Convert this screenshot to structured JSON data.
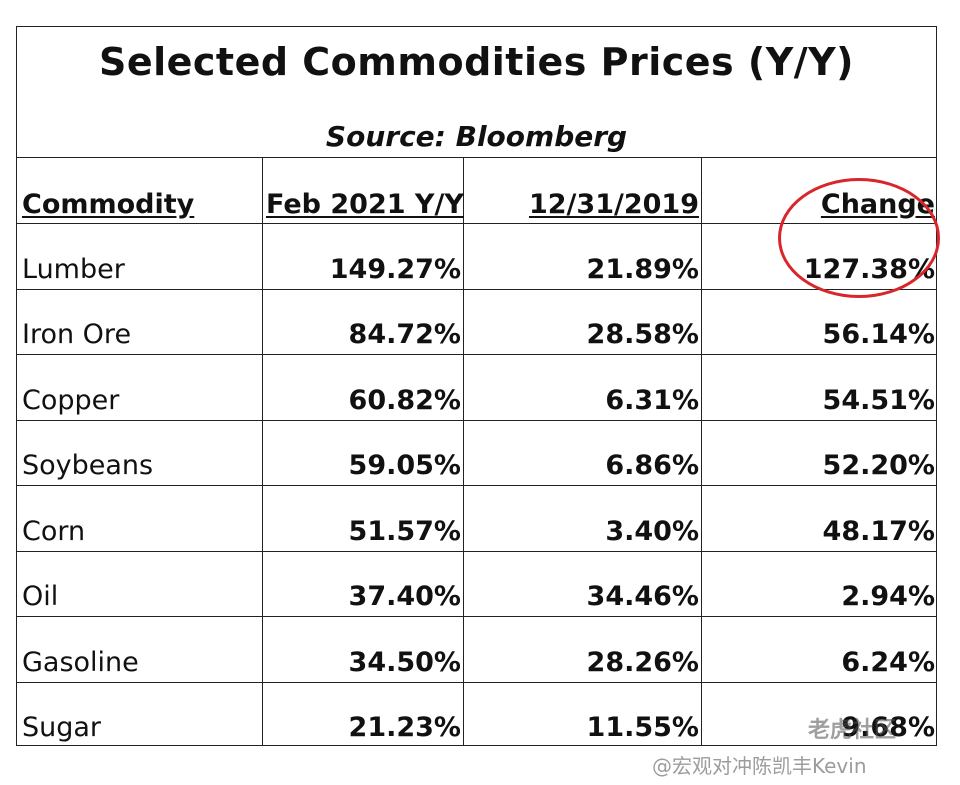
{
  "title": "Selected Commodities Prices (Y/Y)",
  "subtitle": "Source:  Bloomberg",
  "columns": [
    "Commodity",
    "Feb 2021 Y/Y",
    "12/31/2019",
    "Change"
  ],
  "rows": [
    {
      "commodity": "Lumber",
      "feb2021": "149.27%",
      "dec2019": "21.89%",
      "change": "127.38%"
    },
    {
      "commodity": "Iron Ore",
      "feb2021": "84.72%",
      "dec2019": "28.58%",
      "change": "56.14%"
    },
    {
      "commodity": "Copper",
      "feb2021": "60.82%",
      "dec2019": "6.31%",
      "change": "54.51%"
    },
    {
      "commodity": "Soybeans",
      "feb2021": "59.05%",
      "dec2019": "6.86%",
      "change": "52.20%"
    },
    {
      "commodity": "Corn",
      "feb2021": "51.57%",
      "dec2019": "3.40%",
      "change": "48.17%"
    },
    {
      "commodity": "Oil",
      "feb2021": "37.40%",
      "dec2019": "34.46%",
      "change": "2.94%"
    },
    {
      "commodity": "Gasoline",
      "feb2021": "34.50%",
      "dec2019": "28.26%",
      "change": "6.24%"
    },
    {
      "commodity": "Sugar",
      "feb2021": "21.23%",
      "dec2019": "11.55%",
      "change": "9.68%"
    }
  ],
  "highlight": {
    "row": "Lumber",
    "column": "Change",
    "color": "#d8262a"
  },
  "watermark": {
    "line1": "老虎社区",
    "line2": "@宏观对冲陈凯丰Kevin"
  }
}
